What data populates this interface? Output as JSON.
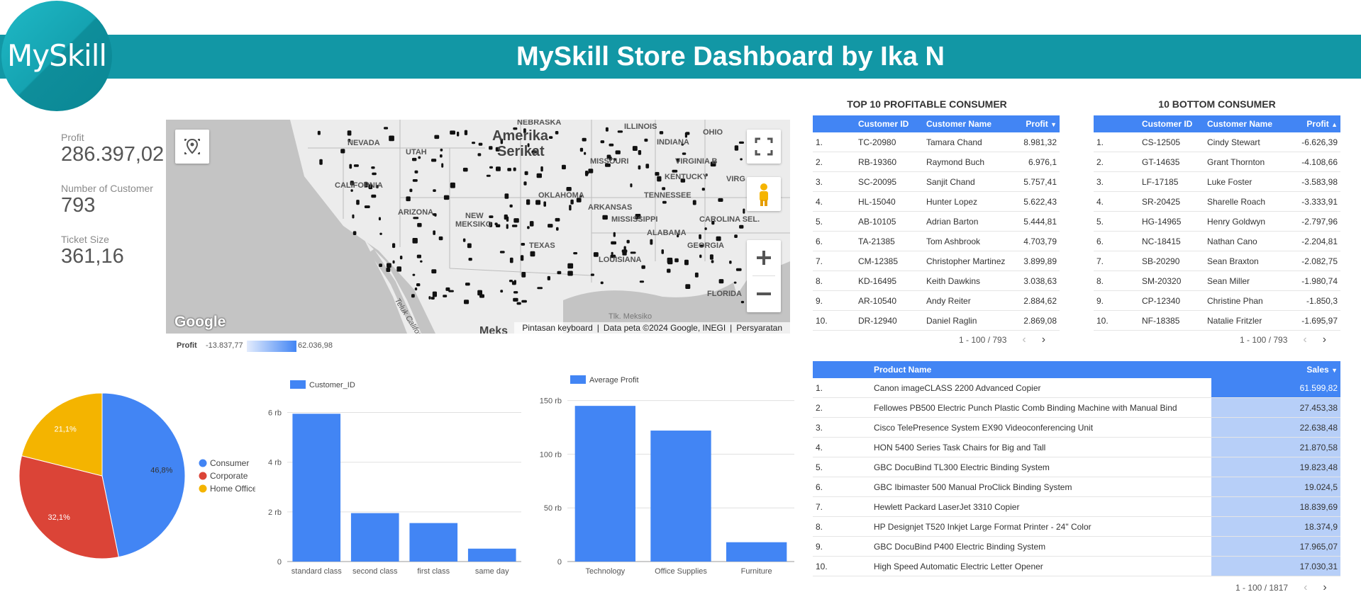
{
  "header": {
    "title": "MySkill Store Dashboard by Ika N",
    "logo_text": "MySkill"
  },
  "kpis": [
    {
      "label": "Profit",
      "value": "286.397,02"
    },
    {
      "label": "Number of Customer",
      "value": "793"
    },
    {
      "label": "Ticket Size",
      "value": "361,16"
    }
  ],
  "map": {
    "labels": [
      "NEBRASKA",
      "ILLINOIS",
      "NEVADA",
      "UTAH",
      "INDIANA",
      "OHIO",
      "Amerika",
      "Serikat",
      "MISSOURI",
      "VIRGINIA B",
      "CALIFORNIA",
      "KENTUCKY",
      "VIRG",
      "OKLAHOMA",
      "ARIZONA",
      "ARKANSAS",
      "TENNESSEE",
      "NEW",
      "MEKSIKO",
      "MISSISSIPPI",
      "CAROLINA SEL.",
      "ALABAMA",
      "TEXAS",
      "GEORGIA",
      "LOUISIANA",
      "FLORIDA",
      "Teluk California",
      "Tlk. Meksiko",
      "Meks"
    ],
    "google_logo": "Google",
    "footer": {
      "shortcuts": "Pintasan keyboard",
      "data": "Data peta ©2024 Google, INEGI",
      "terms": "Persyaratan"
    },
    "legend": {
      "label": "Profit",
      "min": "-13.837,77",
      "max": "62.036,98"
    }
  },
  "top_table": {
    "title": "TOP 10 PROFITABLE CONSUMER",
    "headers": [
      "Customer ID",
      "Customer Name",
      "Profit"
    ],
    "rows": [
      [
        "1.",
        "TC-20980",
        "Tamara Chand",
        "8.981,32"
      ],
      [
        "2.",
        "RB-19360",
        "Raymond Buch",
        "6.976,1"
      ],
      [
        "3.",
        "SC-20095",
        "Sanjit Chand",
        "5.757,41"
      ],
      [
        "4.",
        "HL-15040",
        "Hunter Lopez",
        "5.622,43"
      ],
      [
        "5.",
        "AB-10105",
        "Adrian Barton",
        "5.444,81"
      ],
      [
        "6.",
        "TA-21385",
        "Tom Ashbrook",
        "4.703,79"
      ],
      [
        "7.",
        "CM-12385",
        "Christopher Martinez",
        "3.899,89"
      ],
      [
        "8.",
        "KD-16495",
        "Keith Dawkins",
        "3.038,63"
      ],
      [
        "9.",
        "AR-10540",
        "Andy Reiter",
        "2.884,62"
      ],
      [
        "10.",
        "DR-12940",
        "Daniel Raglin",
        "2.869,08"
      ]
    ],
    "pager": "1 - 100 / 793"
  },
  "bottom_table": {
    "title": "10 BOTTOM CONSUMER",
    "headers": [
      "Customer ID",
      "Customer Name",
      "Profit"
    ],
    "rows": [
      [
        "1.",
        "CS-12505",
        "Cindy Stewart",
        "-6.626,39"
      ],
      [
        "2.",
        "GT-14635",
        "Grant Thornton",
        "-4.108,66"
      ],
      [
        "3.",
        "LF-17185",
        "Luke Foster",
        "-3.583,98"
      ],
      [
        "4.",
        "SR-20425",
        "Sharelle Roach",
        "-3.333,91"
      ],
      [
        "5.",
        "HG-14965",
        "Henry Goldwyn",
        "-2.797,96"
      ],
      [
        "6.",
        "NC-18415",
        "Nathan Cano",
        "-2.204,81"
      ],
      [
        "7.",
        "SB-20290",
        "Sean Braxton",
        "-2.082,75"
      ],
      [
        "8.",
        "SM-20320",
        "Sean Miller",
        "-1.980,74"
      ],
      [
        "9.",
        "CP-12340",
        "Christine Phan",
        "-1.850,3"
      ],
      [
        "10.",
        "NF-18385",
        "Natalie Fritzler",
        "-1.695,97"
      ]
    ],
    "pager": "1 - 100 / 793"
  },
  "product_table": {
    "headers": [
      "Product Name",
      "Sales"
    ],
    "rows": [
      [
        "1.",
        "Canon imageCLASS 2200 Advanced Copier",
        "61.599,82"
      ],
      [
        "2.",
        "Fellowes PB500 Electric Punch Plastic Comb Binding Machine with Manual Bind",
        "27.453,38"
      ],
      [
        "3.",
        "Cisco TelePresence System EX90 Videoconferencing Unit",
        "22.638,48"
      ],
      [
        "4.",
        "HON 5400 Series Task Chairs for Big and Tall",
        "21.870,58"
      ],
      [
        "5.",
        "GBC DocuBind TL300 Electric Binding System",
        "19.823,48"
      ],
      [
        "6.",
        "GBC Ibimaster 500 Manual ProClick Binding System",
        "19.024,5"
      ],
      [
        "7.",
        "Hewlett Packard LaserJet 3310 Copier",
        "18.839,69"
      ],
      [
        "8.",
        "HP Designjet T520 Inkjet Large Format Printer - 24\" Color",
        "18.374,9"
      ],
      [
        "9.",
        "GBC DocuBind P400 Electric Binding System",
        "17.965,07"
      ],
      [
        "10.",
        "High Speed Automatic Electric Letter Opener",
        "17.030,31"
      ]
    ],
    "pager": "1 - 100 / 1817"
  },
  "colors": {
    "teal": "#1297a5",
    "blue": "#4285f4",
    "red": "#db4437",
    "yellow": "#f4b400"
  },
  "chart_data": [
    {
      "type": "pie",
      "categories": [
        "Consumer",
        "Corporate",
        "Home Office"
      ],
      "values": [
        46.8,
        32.1,
        21.1
      ],
      "labels": [
        "46,8%",
        "32,1%",
        "21,1%"
      ],
      "colors": [
        "#4285f4",
        "#db4437",
        "#f4b400"
      ],
      "legend": "right"
    },
    {
      "type": "bar",
      "categories": [
        "standard class",
        "second class",
        "first class",
        "same day"
      ],
      "series": [
        {
          "name": "Customer_ID",
          "values": [
            5950,
            1950,
            1550,
            520
          ]
        }
      ],
      "ylim": [
        0,
        6500
      ],
      "yticks": [
        0,
        2000,
        4000,
        6000
      ],
      "ytick_labels": [
        "0",
        "2 rb",
        "4 rb",
        "6 rb"
      ],
      "grid": true,
      "legend": "top-left"
    },
    {
      "type": "bar",
      "categories": [
        "Technology",
        "Office Supplies",
        "Furniture"
      ],
      "series": [
        {
          "name": "Average Profit",
          "values": [
            145,
            122,
            18
          ]
        }
      ],
      "ylim": [
        0,
        155
      ],
      "yticks": [
        0,
        50,
        100,
        150
      ],
      "ytick_labels": [
        "0",
        "50 rb",
        "100 rb",
        "150 rb"
      ],
      "grid": true,
      "legend": "top-left"
    }
  ]
}
